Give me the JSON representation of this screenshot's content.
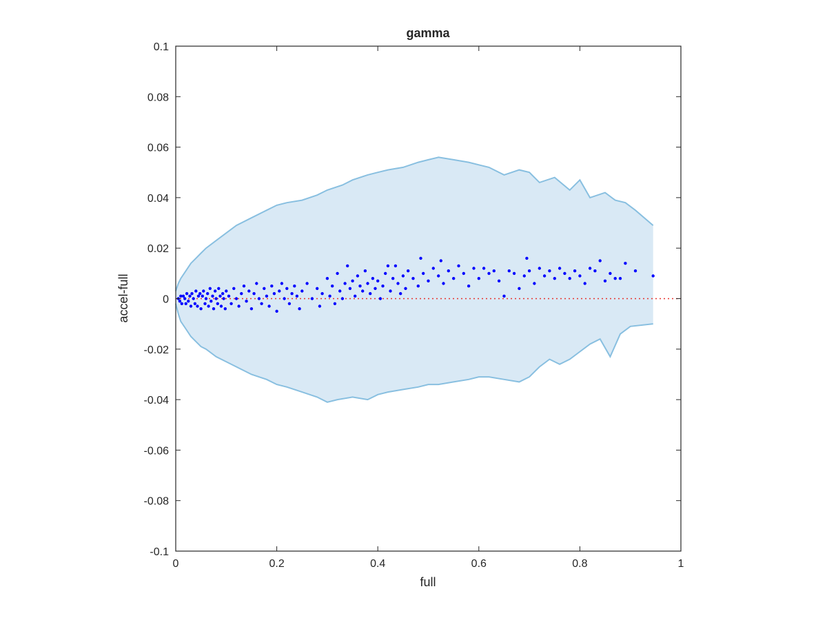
{
  "chart_data": {
    "type": "scatter",
    "title": "gamma",
    "xlabel": "full",
    "ylabel": "accel-full",
    "xlim": [
      0,
      1
    ],
    "ylim": [
      -0.1,
      0.1
    ],
    "xticks": [
      "0",
      "0.2",
      "0.4",
      "0.6",
      "0.8",
      "1"
    ],
    "yticks": [
      "-0.1",
      "-0.08",
      "-0.06",
      "-0.04",
      "-0.02",
      "0",
      "0.02",
      "0.04",
      "0.06",
      "0.08",
      "0.1"
    ],
    "grid": false,
    "legend": "none",
    "reference_line": {
      "y": 0,
      "style": "dotted",
      "color": "#e8332e"
    },
    "band": {
      "color_fill": "#d9e9f5",
      "color_line": "#88bfe0",
      "upper": [
        [
          0.0,
          0.003
        ],
        [
          0.005,
          0.006
        ],
        [
          0.01,
          0.008
        ],
        [
          0.02,
          0.011
        ],
        [
          0.03,
          0.014
        ],
        [
          0.04,
          0.016
        ],
        [
          0.05,
          0.018
        ],
        [
          0.06,
          0.02
        ],
        [
          0.08,
          0.023
        ],
        [
          0.1,
          0.026
        ],
        [
          0.12,
          0.029
        ],
        [
          0.15,
          0.032
        ],
        [
          0.18,
          0.035
        ],
        [
          0.2,
          0.037
        ],
        [
          0.22,
          0.038
        ],
        [
          0.25,
          0.039
        ],
        [
          0.28,
          0.041
        ],
        [
          0.3,
          0.043
        ],
        [
          0.33,
          0.045
        ],
        [
          0.35,
          0.047
        ],
        [
          0.38,
          0.049
        ],
        [
          0.4,
          0.05
        ],
        [
          0.42,
          0.051
        ],
        [
          0.45,
          0.052
        ],
        [
          0.48,
          0.054
        ],
        [
          0.5,
          0.055
        ],
        [
          0.52,
          0.056
        ],
        [
          0.55,
          0.055
        ],
        [
          0.58,
          0.054
        ],
        [
          0.6,
          0.053
        ],
        [
          0.62,
          0.052
        ],
        [
          0.65,
          0.049
        ],
        [
          0.68,
          0.051
        ],
        [
          0.7,
          0.05
        ],
        [
          0.72,
          0.046
        ],
        [
          0.75,
          0.048
        ],
        [
          0.78,
          0.043
        ],
        [
          0.8,
          0.047
        ],
        [
          0.82,
          0.04
        ],
        [
          0.85,
          0.042
        ],
        [
          0.87,
          0.039
        ],
        [
          0.89,
          0.038
        ],
        [
          0.91,
          0.035
        ],
        [
          0.945,
          0.029
        ]
      ],
      "lower": [
        [
          0.0,
          -0.002
        ],
        [
          0.005,
          -0.006
        ],
        [
          0.01,
          -0.009
        ],
        [
          0.02,
          -0.012
        ],
        [
          0.03,
          -0.015
        ],
        [
          0.04,
          -0.017
        ],
        [
          0.05,
          -0.019
        ],
        [
          0.06,
          -0.02
        ],
        [
          0.08,
          -0.023
        ],
        [
          0.1,
          -0.025
        ],
        [
          0.12,
          -0.027
        ],
        [
          0.15,
          -0.03
        ],
        [
          0.18,
          -0.032
        ],
        [
          0.2,
          -0.034
        ],
        [
          0.22,
          -0.035
        ],
        [
          0.25,
          -0.037
        ],
        [
          0.28,
          -0.039
        ],
        [
          0.3,
          -0.041
        ],
        [
          0.32,
          -0.04
        ],
        [
          0.35,
          -0.039
        ],
        [
          0.38,
          -0.04
        ],
        [
          0.4,
          -0.038
        ],
        [
          0.42,
          -0.037
        ],
        [
          0.45,
          -0.036
        ],
        [
          0.48,
          -0.035
        ],
        [
          0.5,
          -0.034
        ],
        [
          0.52,
          -0.034
        ],
        [
          0.55,
          -0.033
        ],
        [
          0.58,
          -0.032
        ],
        [
          0.6,
          -0.031
        ],
        [
          0.62,
          -0.031
        ],
        [
          0.65,
          -0.032
        ],
        [
          0.68,
          -0.033
        ],
        [
          0.7,
          -0.031
        ],
        [
          0.72,
          -0.027
        ],
        [
          0.74,
          -0.024
        ],
        [
          0.76,
          -0.026
        ],
        [
          0.78,
          -0.024
        ],
        [
          0.8,
          -0.021
        ],
        [
          0.82,
          -0.018
        ],
        [
          0.84,
          -0.016
        ],
        [
          0.86,
          -0.023
        ],
        [
          0.88,
          -0.014
        ],
        [
          0.9,
          -0.011
        ],
        [
          0.945,
          -0.01
        ]
      ]
    },
    "series": [
      {
        "color": "#0000ff",
        "points": [
          [
            0.005,
            0.0
          ],
          [
            0.008,
            -0.001
          ],
          [
            0.01,
            0.001
          ],
          [
            0.012,
            -0.002
          ],
          [
            0.015,
            0.001
          ],
          [
            0.018,
            0.0
          ],
          [
            0.02,
            -0.002
          ],
          [
            0.022,
            0.002
          ],
          [
            0.025,
            -0.001
          ],
          [
            0.028,
            0.001
          ],
          [
            0.03,
            -0.003
          ],
          [
            0.032,
            0.002
          ],
          [
            0.035,
            0.0
          ],
          [
            0.038,
            -0.002
          ],
          [
            0.04,
            0.003
          ],
          [
            0.043,
            -0.003
          ],
          [
            0.045,
            0.001
          ],
          [
            0.048,
            0.002
          ],
          [
            0.05,
            -0.004
          ],
          [
            0.053,
            0.001
          ],
          [
            0.055,
            0.003
          ],
          [
            0.058,
            -0.002
          ],
          [
            0.06,
            0.0
          ],
          [
            0.063,
            0.002
          ],
          [
            0.065,
            -0.003
          ],
          [
            0.068,
            0.004
          ],
          [
            0.07,
            -0.001
          ],
          [
            0.073,
            0.001
          ],
          [
            0.075,
            -0.004
          ],
          [
            0.078,
            0.003
          ],
          [
            0.08,
            0.0
          ],
          [
            0.083,
            -0.002
          ],
          [
            0.085,
            0.004
          ],
          [
            0.088,
            0.001
          ],
          [
            0.09,
            -0.003
          ],
          [
            0.093,
            0.002
          ],
          [
            0.095,
            0.0
          ],
          [
            0.098,
            -0.004
          ],
          [
            0.1,
            0.003
          ],
          [
            0.105,
            0.001
          ],
          [
            0.11,
            -0.002
          ],
          [
            0.115,
            0.004
          ],
          [
            0.12,
            0.0
          ],
          [
            0.125,
            -0.003
          ],
          [
            0.13,
            0.002
          ],
          [
            0.135,
            0.005
          ],
          [
            0.14,
            -0.001
          ],
          [
            0.145,
            0.003
          ],
          [
            0.15,
            -0.004
          ],
          [
            0.155,
            0.002
          ],
          [
            0.16,
            0.006
          ],
          [
            0.165,
            0.0
          ],
          [
            0.17,
            -0.002
          ],
          [
            0.175,
            0.004
          ],
          [
            0.18,
            0.001
          ],
          [
            0.185,
            -0.003
          ],
          [
            0.19,
            0.005
          ],
          [
            0.195,
            0.002
          ],
          [
            0.2,
            -0.005
          ],
          [
            0.205,
            0.003
          ],
          [
            0.21,
            0.006
          ],
          [
            0.215,
            0.0
          ],
          [
            0.22,
            0.004
          ],
          [
            0.225,
            -0.002
          ],
          [
            0.23,
            0.002
          ],
          [
            0.235,
            0.005
          ],
          [
            0.24,
            0.001
          ],
          [
            0.245,
            -0.004
          ],
          [
            0.25,
            0.003
          ],
          [
            0.26,
            0.006
          ],
          [
            0.27,
            0.0
          ],
          [
            0.28,
            0.004
          ],
          [
            0.285,
            -0.003
          ],
          [
            0.29,
            0.002
          ],
          [
            0.3,
            0.008
          ],
          [
            0.305,
            0.001
          ],
          [
            0.31,
            0.005
          ],
          [
            0.315,
            -0.002
          ],
          [
            0.32,
            0.01
          ],
          [
            0.325,
            0.003
          ],
          [
            0.33,
            0.0
          ],
          [
            0.335,
            0.006
          ],
          [
            0.34,
            0.013
          ],
          [
            0.345,
            0.004
          ],
          [
            0.35,
            0.007
          ],
          [
            0.355,
            0.001
          ],
          [
            0.36,
            0.009
          ],
          [
            0.365,
            0.005
          ],
          [
            0.37,
            0.003
          ],
          [
            0.375,
            0.011
          ],
          [
            0.38,
            0.006
          ],
          [
            0.385,
            0.002
          ],
          [
            0.39,
            0.008
          ],
          [
            0.395,
            0.004
          ],
          [
            0.4,
            0.007
          ],
          [
            0.405,
            0.0
          ],
          [
            0.41,
            0.005
          ],
          [
            0.415,
            0.01
          ],
          [
            0.42,
            0.013
          ],
          [
            0.425,
            0.003
          ],
          [
            0.43,
            0.008
          ],
          [
            0.435,
            0.013
          ],
          [
            0.44,
            0.006
          ],
          [
            0.445,
            0.002
          ],
          [
            0.45,
            0.009
          ],
          [
            0.455,
            0.004
          ],
          [
            0.46,
            0.011
          ],
          [
            0.47,
            0.008
          ],
          [
            0.48,
            0.005
          ],
          [
            0.485,
            0.016
          ],
          [
            0.49,
            0.01
          ],
          [
            0.5,
            0.007
          ],
          [
            0.51,
            0.012
          ],
          [
            0.52,
            0.009
          ],
          [
            0.525,
            0.015
          ],
          [
            0.53,
            0.006
          ],
          [
            0.54,
            0.011
          ],
          [
            0.55,
            0.008
          ],
          [
            0.56,
            0.013
          ],
          [
            0.57,
            0.01
          ],
          [
            0.58,
            0.005
          ],
          [
            0.59,
            0.012
          ],
          [
            0.6,
            0.008
          ],
          [
            0.61,
            0.012
          ],
          [
            0.62,
            0.01
          ],
          [
            0.63,
            0.011
          ],
          [
            0.64,
            0.007
          ],
          [
            0.65,
            0.001
          ],
          [
            0.66,
            0.011
          ],
          [
            0.67,
            0.01
          ],
          [
            0.68,
            0.004
          ],
          [
            0.69,
            0.009
          ],
          [
            0.695,
            0.016
          ],
          [
            0.7,
            0.011
          ],
          [
            0.71,
            0.006
          ],
          [
            0.72,
            0.012
          ],
          [
            0.73,
            0.009
          ],
          [
            0.74,
            0.011
          ],
          [
            0.75,
            0.008
          ],
          [
            0.76,
            0.012
          ],
          [
            0.77,
            0.01
          ],
          [
            0.78,
            0.008
          ],
          [
            0.79,
            0.011
          ],
          [
            0.8,
            0.009
          ],
          [
            0.81,
            0.006
          ],
          [
            0.82,
            0.012
          ],
          [
            0.83,
            0.011
          ],
          [
            0.84,
            0.015
          ],
          [
            0.85,
            0.007
          ],
          [
            0.86,
            0.01
          ],
          [
            0.87,
            0.008
          ],
          [
            0.88,
            0.008
          ],
          [
            0.89,
            0.014
          ],
          [
            0.91,
            0.011
          ],
          [
            0.945,
            0.009
          ]
        ]
      }
    ]
  }
}
